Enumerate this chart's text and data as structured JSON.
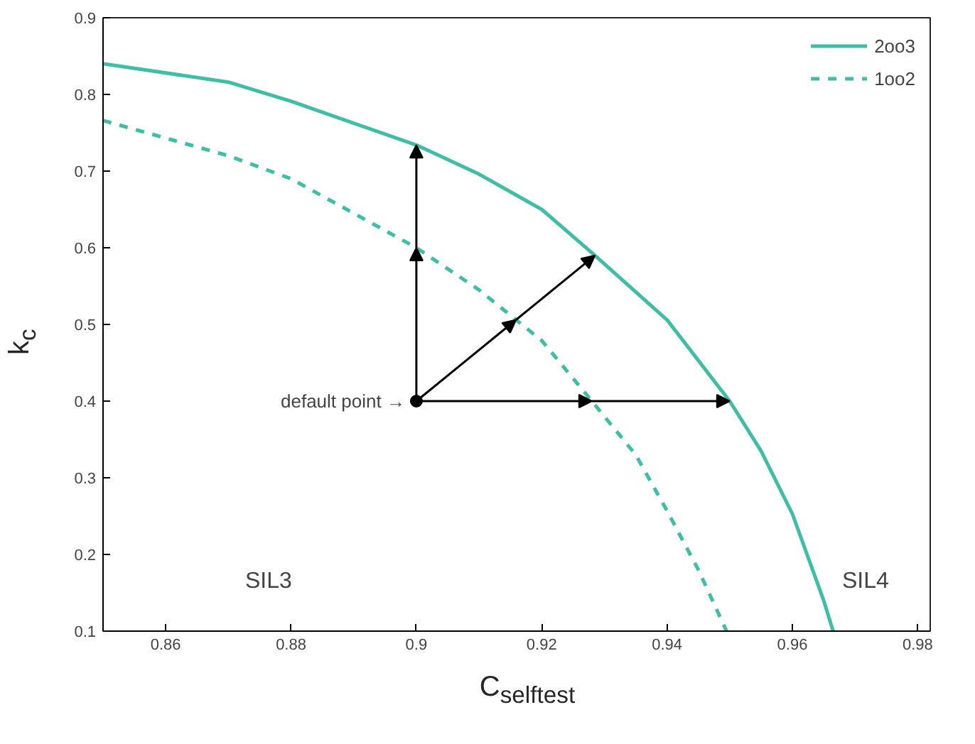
{
  "chart_data": {
    "type": "line",
    "xlabel": "C$_{selftest}$",
    "ylabel": "k$_{c}$",
    "xlim": [
      0.85,
      0.982
    ],
    "ylim": [
      0.1,
      0.9
    ],
    "xticks": [
      0.86,
      0.88,
      0.9,
      0.92,
      0.94,
      0.96,
      0.98
    ],
    "yticks": [
      0.1,
      0.2,
      0.3,
      0.4,
      0.5,
      0.6,
      0.7,
      0.8,
      0.9
    ],
    "grid": false,
    "legend": "top right",
    "series": [
      {
        "name": "2oo3",
        "color": "#3dbfa6",
        "line_style": "solid",
        "x": [
          0.85,
          0.87,
          0.88,
          0.9,
          0.91,
          0.92,
          0.9285,
          0.94,
          0.95,
          0.955,
          0.96,
          0.965,
          0.9665
        ],
        "values": [
          0.84,
          0.816,
          0.791,
          0.734,
          0.696,
          0.65,
          0.59,
          0.506,
          0.4,
          0.335,
          0.253,
          0.14,
          0.1
        ]
      },
      {
        "name": "1oo2",
        "color": "#3dbfa6",
        "line_style": "dashed",
        "x": [
          0.85,
          0.87,
          0.88,
          0.9,
          0.91,
          0.92,
          0.928,
          0.935,
          0.94,
          0.945,
          0.9495
        ],
        "values": [
          0.766,
          0.72,
          0.69,
          0.6,
          0.545,
          0.479,
          0.4,
          0.33,
          0.257,
          0.18,
          0.1
        ]
      },
      {
        "type": "scatter",
        "color": "#000000",
        "marker": "circle",
        "x": [
          0.9
        ],
        "values": [
          0.4
        ]
      }
    ],
    "annotations": [
      {
        "text": "default point →",
        "x": 0.9,
        "y": 0.4
      },
      "SIL3",
      "SIL4"
    ]
  }
}
